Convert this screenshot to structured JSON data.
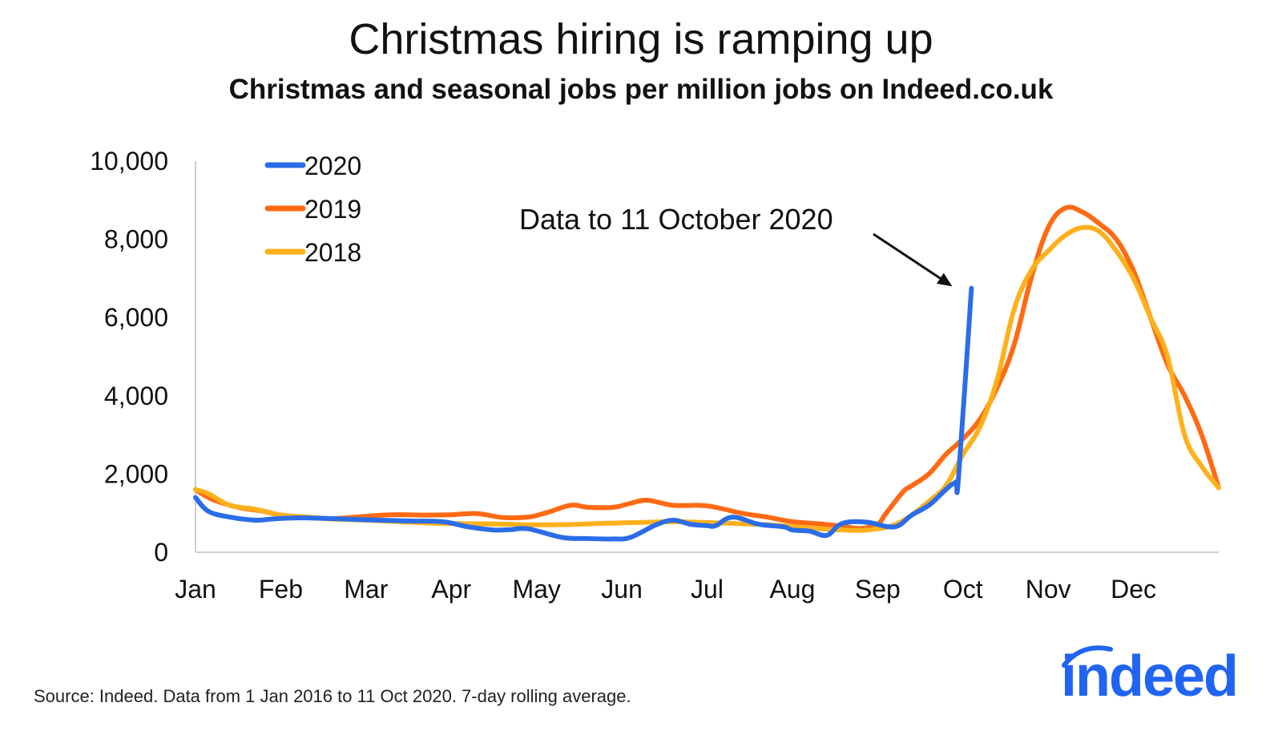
{
  "page": {
    "title": "Christmas hiring is ramping up",
    "subtitle": "Christmas and seasonal jobs per million jobs on Indeed.co.uk",
    "source": "Source: Indeed. Data from 1 Jan 2016 to 11 Oct 2020. 7-day rolling average.",
    "logo_text": "indeed",
    "logo_color": "#2164f3"
  },
  "chart_data": {
    "type": "line",
    "title": "Christmas hiring is ramping up",
    "subtitle": "Christmas and seasonal jobs per million jobs on Indeed.co.uk",
    "xlabel": "",
    "ylabel": "",
    "x_tick_labels": [
      "Jan",
      "Feb",
      "Mar",
      "Apr",
      "May",
      "Jun",
      "Jul",
      "Aug",
      "Sep",
      "Oct",
      "Nov",
      "Dec"
    ],
    "y_ticks": [
      0,
      2000,
      4000,
      6000,
      8000,
      10000
    ],
    "y_tick_labels": [
      "0",
      "2,000",
      "4,000",
      "6,000",
      "8,000",
      "10,000"
    ],
    "ylim": [
      0,
      10000
    ],
    "xlim": [
      0,
      12
    ],
    "grid": false,
    "legend_position": "top-left",
    "annotation": {
      "text": "Data to 11 October 2020",
      "points_to": {
        "x": 8.95,
        "y": 6800
      }
    },
    "series": [
      {
        "name": "2020",
        "color": "#2b6de9",
        "x": [
          0,
          0.15,
          0.4,
          0.7,
          0.9,
          1.2,
          1.6,
          2.0,
          2.5,
          2.9,
          3.2,
          3.5,
          3.7,
          3.9,
          4.3,
          4.6,
          4.9,
          5.1,
          5.4,
          5.6,
          5.8,
          6.0,
          6.1,
          6.3,
          6.6,
          6.9,
          7.0,
          7.2,
          7.4,
          7.55,
          7.7,
          7.9,
          8.2,
          8.4,
          8.6,
          8.75,
          8.85,
          8.92,
          8.95,
          9.1
        ],
        "y": [
          1400,
          1050,
          900,
          820,
          850,
          880,
          860,
          830,
          800,
          780,
          650,
          570,
          580,
          600,
          380,
          350,
          340,
          380,
          700,
          820,
          720,
          680,
          680,
          900,
          720,
          650,
          570,
          540,
          430,
          700,
          780,
          760,
          650,
          950,
          1200,
          1500,
          1700,
          1800,
          1950,
          6750
        ]
      },
      {
        "name": "2019",
        "color": "#ff6a13",
        "x": [
          0,
          0.2,
          0.5,
          0.8,
          1.0,
          1.3,
          1.6,
          2.0,
          2.3,
          2.7,
          3.0,
          3.3,
          3.6,
          3.9,
          4.1,
          4.4,
          4.6,
          4.9,
          5.1,
          5.3,
          5.6,
          5.9,
          6.1,
          6.4,
          6.7,
          7.0,
          7.3,
          7.6,
          7.8,
          8.0,
          8.1,
          8.3,
          8.4,
          8.6,
          8.8,
          9.0,
          9.2,
          9.4,
          9.6,
          9.8,
          10.0,
          10.2,
          10.4,
          10.6,
          10.8,
          11.0,
          11.2,
          11.4,
          11.6,
          11.8,
          12.0
        ],
        "y": [
          1600,
          1350,
          1150,
          1050,
          950,
          900,
          860,
          920,
          960,
          950,
          960,
          990,
          890,
          900,
          1000,
          1200,
          1150,
          1150,
          1250,
          1330,
          1200,
          1200,
          1150,
          1000,
          900,
          780,
          730,
          660,
          610,
          720,
          1000,
          1550,
          1700,
          2000,
          2500,
          2900,
          3400,
          4200,
          5300,
          7000,
          8300,
          8800,
          8700,
          8400,
          8000,
          7200,
          6000,
          4800,
          4000,
          3000,
          1650
        ]
      },
      {
        "name": "2018",
        "color": "#ffb11b",
        "x": [
          0,
          0.15,
          0.4,
          0.7,
          1.0,
          1.3,
          1.6,
          2.0,
          2.4,
          2.8,
          3.2,
          3.6,
          4.0,
          4.4,
          4.8,
          5.2,
          5.6,
          6.0,
          6.4,
          6.8,
          7.2,
          7.5,
          7.8,
          8.0,
          8.2,
          8.4,
          8.6,
          8.8,
          9.0,
          9.2,
          9.4,
          9.6,
          9.8,
          10.0,
          10.2,
          10.4,
          10.6,
          10.8,
          11.0,
          11.2,
          11.4,
          11.6,
          11.8,
          12.0
        ],
        "y": [
          1600,
          1500,
          1200,
          1100,
          950,
          900,
          850,
          820,
          780,
          740,
          730,
          720,
          700,
          710,
          740,
          760,
          780,
          760,
          730,
          690,
          620,
          580,
          560,
          600,
          700,
          950,
          1300,
          1700,
          2500,
          3200,
          4400,
          6200,
          7200,
          7700,
          8100,
          8300,
          8200,
          7700,
          7000,
          6000,
          5000,
          3000,
          2200,
          1650
        ]
      }
    ]
  }
}
